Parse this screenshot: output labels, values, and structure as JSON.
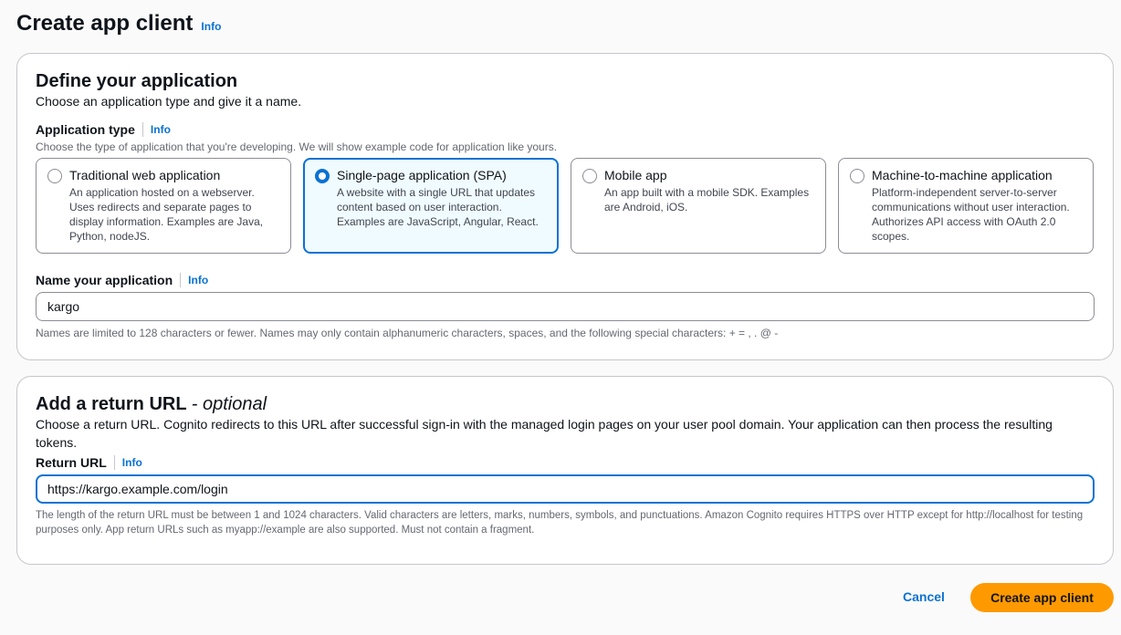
{
  "page": {
    "title": "Create app client",
    "info": "Info"
  },
  "define": {
    "heading": "Define your application",
    "description": "Choose an application type and give it a name.",
    "app_type_label": "Application type",
    "app_type_info": "Info",
    "app_type_hint": "Choose the type of application that you're developing. We will show example code for application like yours.",
    "options": [
      {
        "title": "Traditional web application",
        "description": "An application hosted on a webserver. Uses redirects and separate pages to display information. Examples are Java, Python, nodeJS.",
        "selected": false
      },
      {
        "title": "Single-page application (SPA)",
        "description": "A website with a single URL that updates content based on user interaction. Examples are JavaScript, Angular, React.",
        "selected": true
      },
      {
        "title": "Mobile app",
        "description": "An app built with a mobile SDK. Examples are Android, iOS.",
        "selected": false
      },
      {
        "title": "Machine-to-machine application",
        "description": "Platform-independent server-to-server communications without user interaction. Authorizes API access with OAuth 2.0 scopes.",
        "selected": false
      }
    ],
    "name_label": "Name your application",
    "name_info": "Info",
    "name_value": "kargo",
    "name_hint": "Names are limited to 128 characters or fewer. Names may only contain alphanumeric characters, spaces, and the following special characters: + = , . @ -"
  },
  "return_url": {
    "heading": "Add a return URL",
    "optional": "- optional",
    "description": "Choose a return URL. Cognito redirects to this URL after successful sign-in with the managed login pages on your user pool domain. Your application can then process the resulting tokens.",
    "label": "Return URL",
    "info": "Info",
    "value": "https://kargo.example.com/login",
    "hint": "The length of the return URL must be between 1 and 1024 characters. Valid characters are letters, marks, numbers, symbols, and punctuations. Amazon Cognito requires HTTPS over HTTP except for http://localhost for testing purposes only. App return URLs such as myapp://example are also supported. Must not contain a fragment."
  },
  "actions": {
    "cancel": "Cancel",
    "create": "Create app client"
  },
  "colors": {
    "accent": "#0972d3",
    "primary_button": "#ff9900"
  }
}
